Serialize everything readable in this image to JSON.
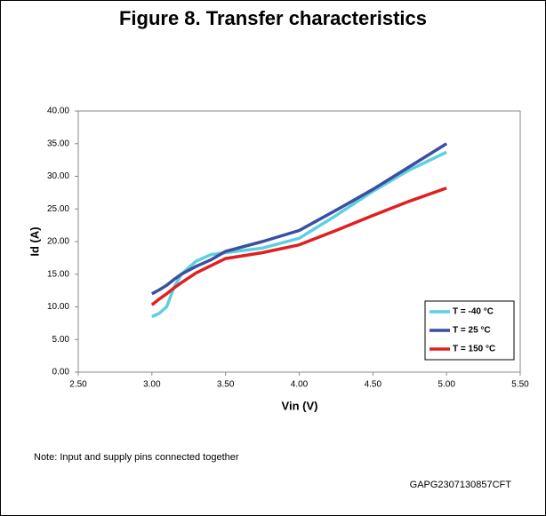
{
  "chart_data": {
    "type": "line",
    "title": "Figure 8. Transfer characteristics",
    "x_label": "Vin (V)",
    "y_label": "Id (A)",
    "x": [
      3.0,
      3.05,
      3.1,
      3.15,
      3.2,
      3.3,
      3.4,
      3.5,
      3.75,
      4.0,
      4.25,
      4.5,
      4.75,
      5.0
    ],
    "series": [
      {
        "name": "T = -40 °C",
        "color": "#5ecfe0",
        "values": [
          8.5,
          9.0,
          10.0,
          13.0,
          15.0,
          17.0,
          18.0,
          18.3,
          19.0,
          20.5,
          24.0,
          27.7,
          31.0,
          33.7
        ]
      },
      {
        "name": "T = 25 °C",
        "color": "#3b4fa0",
        "values": [
          12.0,
          12.6,
          13.3,
          14.2,
          15.0,
          16.2,
          17.2,
          18.5,
          20.0,
          21.7,
          24.8,
          28.0,
          31.5,
          35.0
        ]
      },
      {
        "name": "T = 150 °C",
        "color": "#e02020",
        "values": [
          10.3,
          11.2,
          12.0,
          12.9,
          13.7,
          15.2,
          16.3,
          17.4,
          18.3,
          19.5,
          21.7,
          24.0,
          26.2,
          28.2
        ]
      }
    ],
    "xlim": [
      2.5,
      5.5
    ],
    "xticks": [
      {
        "value": 2.5,
        "label": "2.50"
      },
      {
        "value": 3,
        "label": "3.00"
      },
      {
        "value": 3.5,
        "label": "3.50"
      },
      {
        "value": 4,
        "label": "4.00"
      },
      {
        "value": 4.5,
        "label": "4.50"
      },
      {
        "value": 5,
        "label": "5.00"
      },
      {
        "value": 5.5,
        "label": "5.50"
      }
    ],
    "ylim": [
      0,
      40
    ],
    "yticks": [
      {
        "value": 0,
        "label": "0.00"
      },
      {
        "value": 5,
        "label": "5.00"
      },
      {
        "value": 10,
        "label": "10.00"
      },
      {
        "value": 15,
        "label": "15.00"
      },
      {
        "value": 20,
        "label": "20.00"
      },
      {
        "value": 25,
        "label": "25.00"
      },
      {
        "value": 30,
        "label": "30.00"
      },
      {
        "value": 35,
        "label": "35.00"
      },
      {
        "value": 40,
        "label": "40.00"
      }
    ],
    "grid": false,
    "legend": "lower right",
    "note": "Note: Input and supply pins connected together",
    "code": "GAPG2307130857CFT"
  }
}
